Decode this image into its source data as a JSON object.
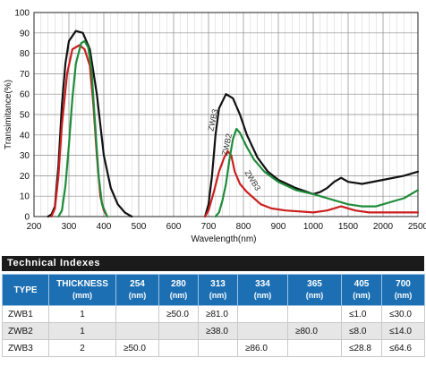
{
  "chart_data": {
    "type": "line",
    "xlabel": "Wavelength(nm)",
    "ylabel": "Transimitance(%)",
    "ylim": [
      0,
      100
    ],
    "y_ticks": [
      "0",
      "10",
      "20",
      "30",
      "40",
      "50",
      "60",
      "70",
      "80",
      "90",
      "100"
    ],
    "x_ticks": [
      "200",
      "300",
      "400",
      "500",
      "600",
      "700",
      "800",
      "900",
      "1000",
      "1500",
      "2000",
      "2500"
    ],
    "grid": true,
    "series": [
      {
        "name": "ZWB3",
        "color": "#111111",
        "segments": [
          [
            [
              240,
              0
            ],
            [
              250,
              1
            ],
            [
              260,
              5
            ],
            [
              270,
              25
            ],
            [
              280,
              55
            ],
            [
              290,
              75
            ],
            [
              300,
              86
            ],
            [
              320,
              91
            ],
            [
              340,
              90
            ],
            [
              360,
              82
            ],
            [
              380,
              60
            ],
            [
              400,
              30
            ],
            [
              420,
              14
            ],
            [
              440,
              6
            ],
            [
              460,
              2
            ],
            [
              480,
              0
            ]
          ],
          [
            [
              690,
              0
            ],
            [
              700,
              6
            ],
            [
              710,
              20
            ],
            [
              720,
              40
            ],
            [
              730,
              53
            ],
            [
              750,
              60
            ],
            [
              770,
              58
            ],
            [
              790,
              50
            ],
            [
              810,
              40
            ],
            [
              840,
              29
            ],
            [
              870,
              22
            ],
            [
              900,
              18
            ],
            [
              950,
              14
            ],
            [
              1000,
              11
            ],
            [
              1100,
              12
            ],
            [
              1200,
              14
            ],
            [
              1300,
              17
            ],
            [
              1400,
              19
            ],
            [
              1500,
              17
            ],
            [
              1700,
              16
            ],
            [
              2000,
              18
            ],
            [
              2300,
              20
            ],
            [
              2500,
              22
            ]
          ]
        ]
      },
      {
        "name": "ZWB1",
        "color": "#cc1f1f",
        "segments": [
          [
            [
              250,
              0
            ],
            [
              260,
              4
            ],
            [
              270,
              20
            ],
            [
              280,
              45
            ],
            [
              295,
              70
            ],
            [
              310,
              82
            ],
            [
              330,
              84
            ],
            [
              345,
              82
            ],
            [
              360,
              74
            ],
            [
              370,
              55
            ],
            [
              380,
              30
            ],
            [
              390,
              10
            ],
            [
              400,
              3
            ],
            [
              410,
              0
            ]
          ],
          [
            [
              690,
              0
            ],
            [
              700,
              3
            ],
            [
              715,
              12
            ],
            [
              730,
              22
            ],
            [
              745,
              29
            ],
            [
              755,
              32
            ],
            [
              765,
              30
            ],
            [
              775,
              22
            ],
            [
              790,
              16
            ],
            [
              810,
              12
            ],
            [
              830,
              9
            ],
            [
              850,
              6
            ],
            [
              880,
              4
            ],
            [
              920,
              3
            ],
            [
              1000,
              2
            ],
            [
              1200,
              3
            ],
            [
              1400,
              5
            ],
            [
              1600,
              3
            ],
            [
              1800,
              2
            ],
            [
              2000,
              2
            ],
            [
              2300,
              2
            ],
            [
              2500,
              2
            ]
          ]
        ]
      },
      {
        "name": "ZWB2",
        "color": "#1e8c3a",
        "segments": [
          [
            [
              270,
              0
            ],
            [
              280,
              3
            ],
            [
              290,
              15
            ],
            [
              300,
              35
            ],
            [
              310,
              58
            ],
            [
              320,
              75
            ],
            [
              335,
              85
            ],
            [
              345,
              86
            ],
            [
              355,
              83
            ],
            [
              365,
              72
            ],
            [
              375,
              45
            ],
            [
              385,
              20
            ],
            [
              395,
              6
            ],
            [
              410,
              0
            ]
          ],
          [
            [
              720,
              0
            ],
            [
              730,
              2
            ],
            [
              740,
              8
            ],
            [
              750,
              16
            ],
            [
              760,
              28
            ],
            [
              770,
              38
            ],
            [
              780,
              43
            ],
            [
              790,
              41
            ],
            [
              810,
              34
            ],
            [
              830,
              28
            ],
            [
              860,
              22
            ],
            [
              900,
              17
            ],
            [
              950,
              13
            ],
            [
              1000,
              11
            ],
            [
              1100,
              10
            ],
            [
              1200,
              9
            ],
            [
              1300,
              8
            ],
            [
              1400,
              7
            ],
            [
              1500,
              6
            ],
            [
              1700,
              5
            ],
            [
              1900,
              5
            ],
            [
              2100,
              7
            ],
            [
              2300,
              9
            ],
            [
              2500,
              13
            ]
          ]
        ]
      }
    ],
    "annotations": [
      {
        "text": "ZWB3",
        "x": 720,
        "y": 47
      },
      {
        "text": "ZWB2",
        "x": 760,
        "y": 35
      },
      {
        "text": "ZWB3",
        "x": 820,
        "y": 17
      }
    ]
  },
  "section_title": "Technical Indexes",
  "table": {
    "headers": [
      {
        "top": "TYPE",
        "sub": ""
      },
      {
        "top": "THICKNESS",
        "sub": "(mm)"
      },
      {
        "top": "254",
        "sub": "(nm)"
      },
      {
        "top": "280",
        "sub": "(nm)"
      },
      {
        "top": "313",
        "sub": "(nm)"
      },
      {
        "top": "334",
        "sub": "(nm)"
      },
      {
        "top": "365",
        "sub": "(nm)"
      },
      {
        "top": "405",
        "sub": "(nm)"
      },
      {
        "top": "700",
        "sub": "(nm)"
      }
    ],
    "rows": [
      [
        "ZWB1",
        "1",
        "",
        "≥50.0",
        "≥81.0",
        "",
        "",
        "≤1.0",
        "≤30.0"
      ],
      [
        "ZWB2",
        "1",
        "",
        "",
        "≥38.0",
        "",
        "≥80.0",
        "≤8.0",
        "≤14.0"
      ],
      [
        "ZWB3",
        "2",
        "≥50.0",
        "",
        "",
        "≥86.0",
        "",
        "≤28.8",
        "≤64.6"
      ]
    ]
  }
}
